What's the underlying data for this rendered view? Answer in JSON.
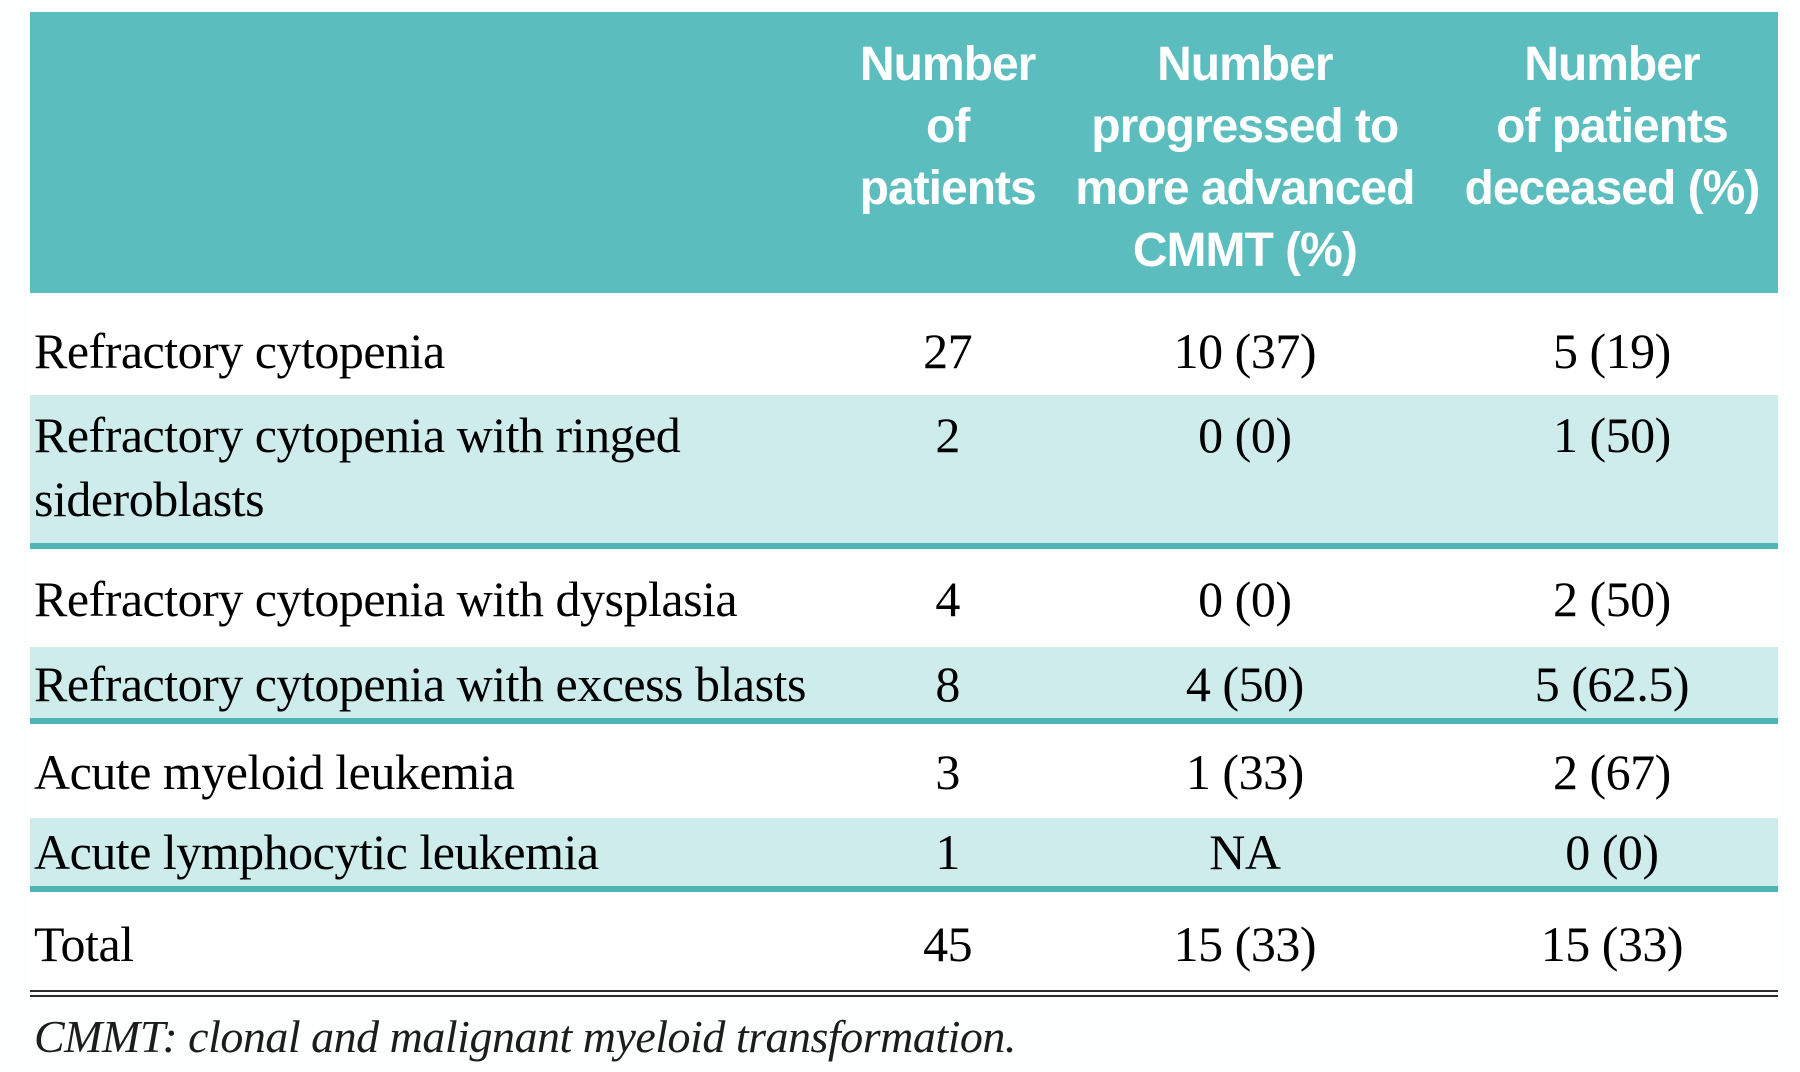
{
  "colors": {
    "header_bg": "#5cbdbe",
    "header_text": "#ffffff",
    "row_alt_bg": "#cdeceb",
    "row_border": "#50b5b7",
    "text": "#000000",
    "rule": "#2d2d2d"
  },
  "table": {
    "header": {
      "col1": "",
      "col2": "Number\nof patients",
      "col3": "Number\nprogressed to\nmore advanced\nCMMT (%)",
      "col4": "Number\nof patients\ndeceased (%)"
    },
    "rows": [
      {
        "label": "Refractory cytopenia",
        "patients": "27",
        "progressed": "10 (37)",
        "deceased": "5 (19)"
      },
      {
        "label": "Refractory cytopenia with ringed\nsideroblasts",
        "patients": "2",
        "progressed": "0 (0)",
        "deceased": "1 (50)"
      },
      {
        "label": "Refractory cytopenia with dysplasia",
        "patients": "4",
        "progressed": "0 (0)",
        "deceased": "2 (50)"
      },
      {
        "label": "Refractory cytopenia with excess blasts",
        "patients": "8",
        "progressed": "4 (50)",
        "deceased": "5 (62.5)"
      },
      {
        "label": "Acute myeloid leukemia",
        "patients": "3",
        "progressed": "1 (33)",
        "deceased": "2 (67)"
      },
      {
        "label": "Acute lymphocytic leukemia",
        "patients": "1",
        "progressed": "NA",
        "deceased": "0 (0)"
      },
      {
        "label": "Total",
        "patients": "45",
        "progressed": "15 (33)",
        "deceased": "15 (33)"
      }
    ],
    "footnote": "CMMT: clonal and malignant myeloid transformation."
  }
}
